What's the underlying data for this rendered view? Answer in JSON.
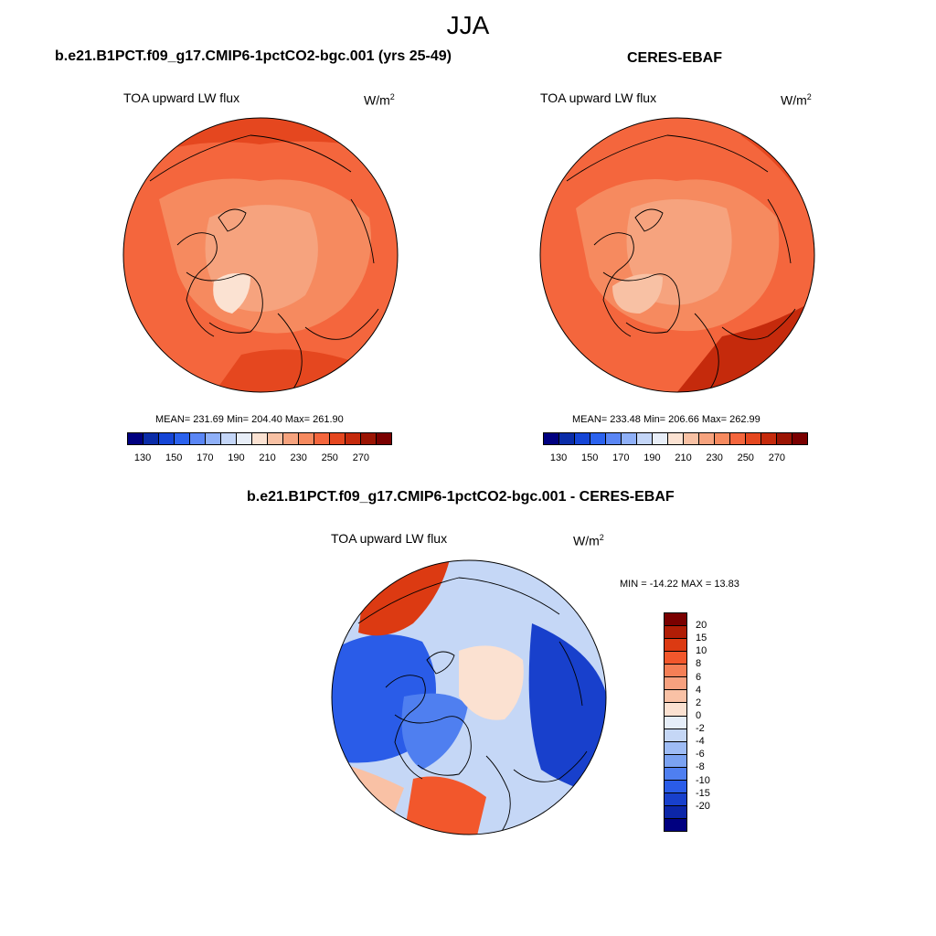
{
  "season": "JJA",
  "panels": {
    "model": {
      "title": "b.e21.B1PCT.f09_g17.CMIP6-1pctCO2-bgc.001 (yrs 25-49)",
      "variable": "TOA upward LW flux",
      "units_base": "W/m",
      "units_exp": "2",
      "stats": "MEAN= 231.69  Min= 204.40  Max= 261.90"
    },
    "obs": {
      "title": "CERES-EBAF",
      "variable": "TOA upward LW flux",
      "units_base": "W/m",
      "units_exp": "2",
      "stats": "MEAN= 233.48  Min= 206.66  Max= 262.99"
    },
    "diff": {
      "title": "b.e21.B1PCT.f09_g17.CMIP6-1pctCO2-bgc.001 - CERES-EBAF",
      "variable": "TOA upward LW flux",
      "units_base": "W/m",
      "units_exp": "2",
      "stats": "MIN = -14.22 MAX =  13.83"
    }
  },
  "colorbar_abs": {
    "colors": [
      "#000080",
      "#0a2ca8",
      "#1545d6",
      "#2b62ee",
      "#5a86f5",
      "#8fb0f8",
      "#c4d6f8",
      "#e8eef8",
      "#fbe2d2",
      "#f8c1a4",
      "#f6a37e",
      "#f68a5f",
      "#f4663d",
      "#e5471f",
      "#c52a0c",
      "#9b1403",
      "#7a0000"
    ],
    "tick_labels": [
      "130",
      "150",
      "170",
      "190",
      "210",
      "230",
      "250",
      "270"
    ]
  },
  "colorbar_diff": {
    "colors": [
      "#7a0000",
      "#b01d06",
      "#dc3a12",
      "#f2572c",
      "#f57f56",
      "#f7a17f",
      "#f9c1a5",
      "#fbe1d1",
      "#e5edf8",
      "#c5d7f6",
      "#9ebcf5",
      "#7aa2f2",
      "#4f7ff0",
      "#2a5ce8",
      "#1840cc",
      "#0c26a8",
      "#000080"
    ],
    "tick_labels": [
      "20",
      "15",
      "10",
      "8",
      "6",
      "4",
      "2",
      "0",
      "-2",
      "-4",
      "-6",
      "-8",
      "-10",
      "-15",
      "-20"
    ]
  }
}
